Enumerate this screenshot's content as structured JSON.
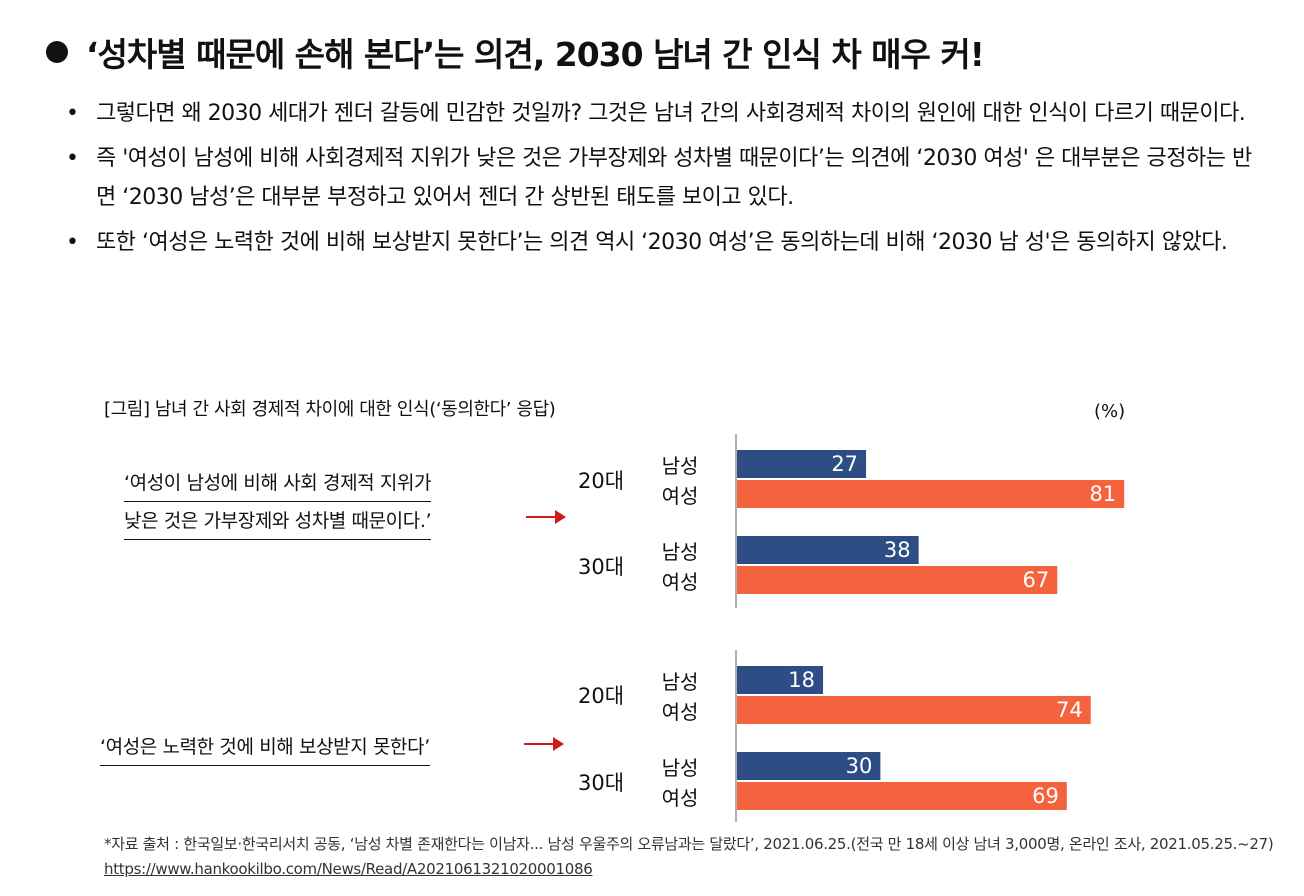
{
  "title": "‘성차별 때문에 손해 본다’는 의견, 2030 남녀 간 인식 차 매우 커!",
  "bullets": [
    "그렇다면 왜 2030 세대가 젠더 갈등에 민감한 것일까? 그것은 남녀 간의 사회경제적 차이의 원인에 대한 인식이 다르기 때문이다.",
    "즉 '여성이 남성에 비해 사회경제적 지위가 낮은 것은 가부장제와 성차별 때문이다’는 의견에 ‘2030 여성' 은 대부분은 긍정하는 반면 ‘2030 남성’은 대부분 부정하고 있어서 젠더 간 상반된 태도를 보이고 있다.",
    "또한 ‘여성은 노력한 것에 비해 보상받지 못한다’는 의견 역시 ‘2030 여성’은 동의하는데 비해 ‘2030 남 성'은 동의하지 않았다."
  ],
  "figure": {
    "caption": "[그림] 남녀 간 사회 경제적 차이에 대한 인식(‘동의한다’ 응답)",
    "unit": "(%)",
    "statement1_line1": "‘여성이 남성에 비해 사회 경제적 지위가",
    "statement1_line2": "낮은 것은 가부장제와 성차별 때문이다.’",
    "statement2": "‘여성은 노력한 것에 비해 보상받지 못한다’",
    "age_20": "20대",
    "age_30": "30대",
    "male": "남성",
    "female": "여성"
  },
  "chart_data": {
    "type": "bar",
    "orientation": "horizontal",
    "unit": "%",
    "xlim": [
      0,
      100
    ],
    "colors": {
      "male": "#2e4d84",
      "female": "#f4633e"
    },
    "groups": [
      {
        "statement": "‘여성이 남성에 비해 사회 경제적 지위가 낮은 것은 가부장제와 성차별 때문이다.’",
        "rows": [
          {
            "age": "20대",
            "sex": "남성",
            "value": 27
          },
          {
            "age": "20대",
            "sex": "여성",
            "value": 81
          },
          {
            "age": "30대",
            "sex": "남성",
            "value": 38
          },
          {
            "age": "30대",
            "sex": "여성",
            "value": 67
          }
        ]
      },
      {
        "statement": "‘여성은 노력한 것에 비해 보상받지 못한다’",
        "rows": [
          {
            "age": "20대",
            "sex": "남성",
            "value": 18
          },
          {
            "age": "20대",
            "sex": "여성",
            "value": 74
          },
          {
            "age": "30대",
            "sex": "남성",
            "value": 30
          },
          {
            "age": "30대",
            "sex": "여성",
            "value": 69
          }
        ]
      }
    ]
  },
  "source": {
    "text": "*자료 출처 : 한국일보·한국리서치 공동, ‘남성 차별 존재한다는 이남자... 남성 우울주의 오류남과는 달랐다’, 2021.06.25.(전국 만 18세 이상 남녀 3,000명, 온라인 조사, 2021.05.25.~27)",
    "url": "https://www.hankookilbo.com/News/Read/A2021061321020001086"
  }
}
